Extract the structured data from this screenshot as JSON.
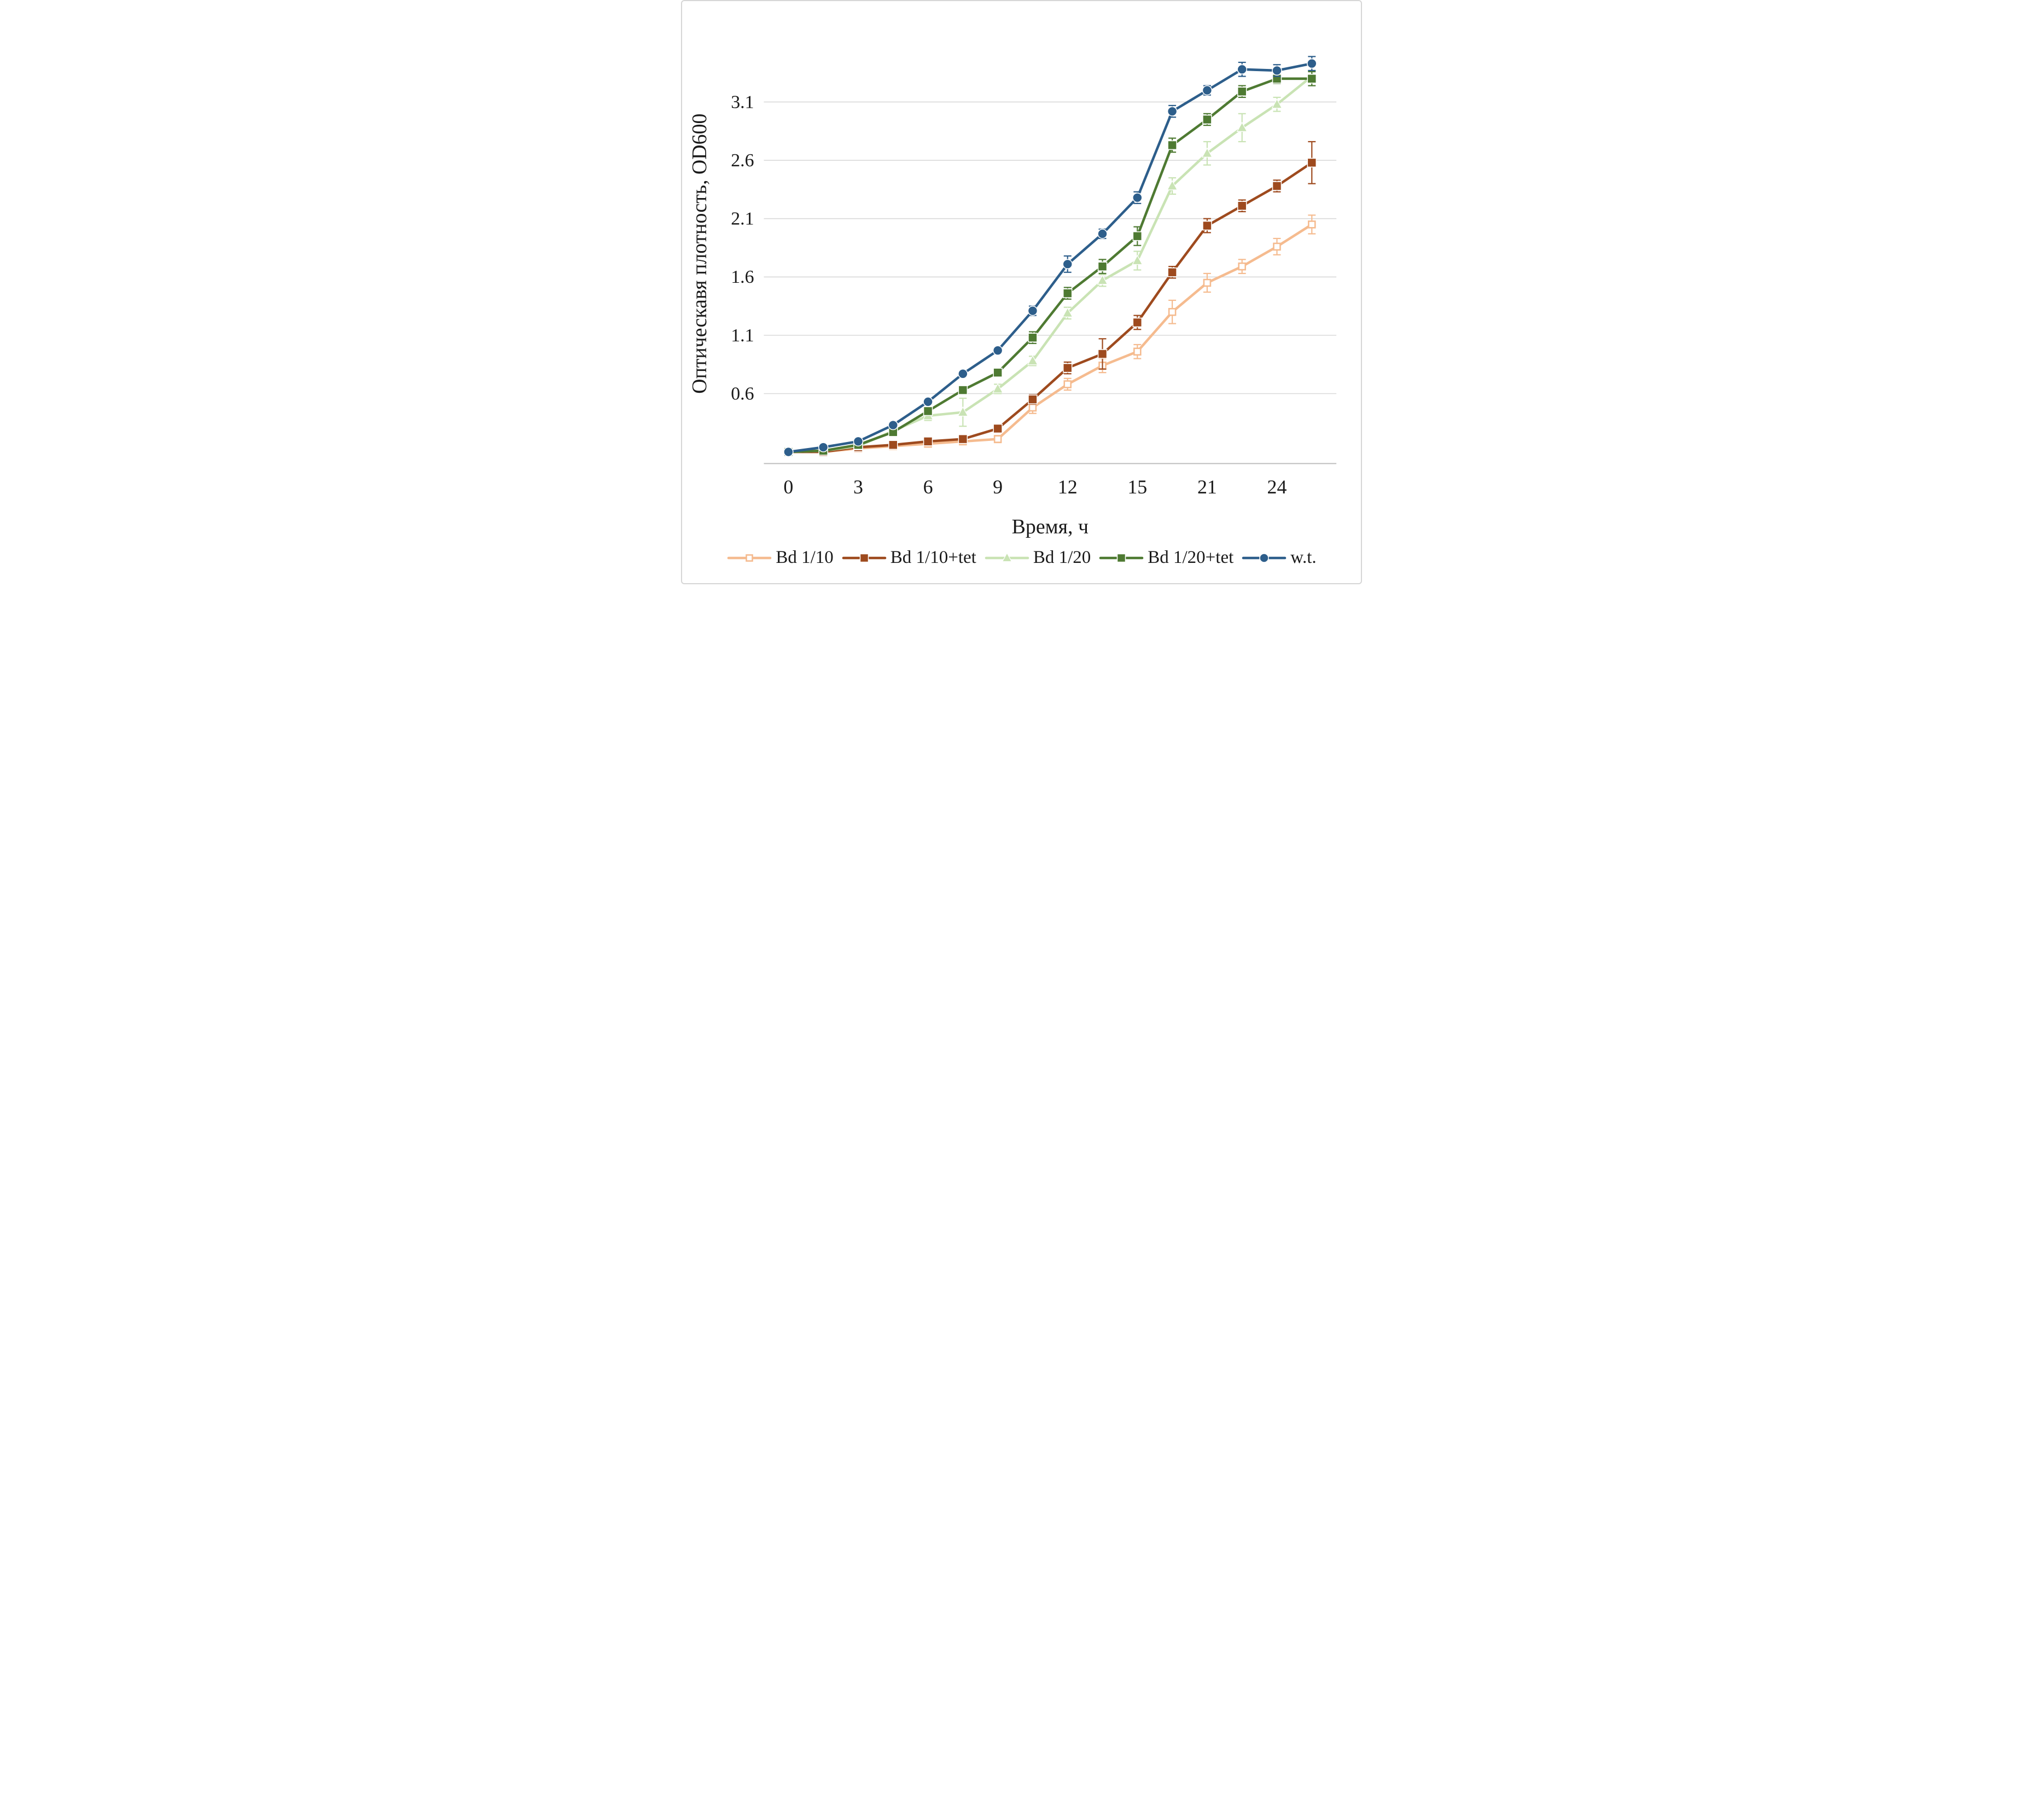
{
  "figure": {
    "background": "#ffffff",
    "border_color": "#d6d6d6",
    "grid_color": "#d9d9d9",
    "axis_color": "#bfbfbf",
    "text_color": "#1a1a1a"
  },
  "chart_data": {
    "type": "line",
    "title": "",
    "xlabel": "Время, ч",
    "ylabel": "Оптическавя плотность, OD600",
    "x_tick_labels": [
      "0",
      "",
      "3",
      "",
      "6",
      "",
      "9",
      "",
      "12",
      "",
      "15",
      "",
      "21",
      "",
      "24",
      ""
    ],
    "y_ticks": [
      0.6,
      1.1,
      1.6,
      2.1,
      2.6,
      3.1
    ],
    "ylim": [
      0,
      3.6
    ],
    "grid": "horizontal",
    "legend_position": "bottom",
    "series": [
      {
        "name": "Bd 1/10",
        "color": "#F5BB8F",
        "marker": "square-open",
        "values": [
          0.1,
          0.1,
          0.13,
          0.15,
          0.17,
          0.19,
          0.21,
          0.48,
          0.68,
          0.84,
          0.96,
          1.3,
          1.55,
          1.69,
          1.86,
          2.05
        ],
        "errors": [
          0,
          0,
          0,
          0,
          0,
          0,
          0.03,
          0.05,
          0.05,
          0.06,
          0.06,
          0.1,
          0.08,
          0.06,
          0.07,
          0.08
        ]
      },
      {
        "name": "Bd 1/10+tet",
        "color": "#9E4A1E",
        "marker": "square",
        "values": [
          0.1,
          0.1,
          0.14,
          0.16,
          0.19,
          0.21,
          0.3,
          0.55,
          0.82,
          0.94,
          1.21,
          1.64,
          2.04,
          2.21,
          2.38,
          2.58
        ],
        "errors": [
          0,
          0,
          0,
          0,
          0,
          0,
          0,
          0.04,
          0.05,
          0.13,
          0.06,
          0.05,
          0.06,
          0.05,
          0.05,
          0.18
        ]
      },
      {
        "name": "Bd 1/20",
        "color": "#C9E3B4",
        "marker": "triangle",
        "values": [
          0.1,
          0.11,
          0.15,
          0.28,
          0.41,
          0.44,
          0.64,
          0.88,
          1.29,
          1.57,
          1.74,
          2.38,
          2.66,
          2.88,
          3.08,
          3.32
        ],
        "errors": [
          0,
          0,
          0,
          0,
          0.04,
          0.12,
          0.04,
          0.04,
          0.05,
          0.05,
          0.08,
          0.07,
          0.1,
          0.12,
          0.06,
          0.05
        ]
      },
      {
        "name": "Bd 1/20+tet",
        "color": "#4E7A32",
        "marker": "square",
        "values": [
          0.1,
          0.11,
          0.16,
          0.27,
          0.45,
          0.63,
          0.78,
          1.08,
          1.46,
          1.69,
          1.95,
          2.73,
          2.95,
          3.19,
          3.3,
          3.3
        ],
        "errors": [
          0,
          0,
          0,
          0,
          0,
          0,
          0,
          0.05,
          0.05,
          0.06,
          0.08,
          0.06,
          0.05,
          0.05,
          0.04,
          0.06
        ]
      },
      {
        "name": "w.t.",
        "color": "#2D5E8B",
        "marker": "circle",
        "values": [
          0.1,
          0.14,
          0.19,
          0.33,
          0.53,
          0.77,
          0.97,
          1.31,
          1.71,
          1.97,
          2.28,
          3.02,
          3.2,
          3.38,
          3.37,
          3.43
        ],
        "errors": [
          0,
          0,
          0,
          0,
          0,
          0,
          0,
          0.04,
          0.07,
          0.04,
          0.05,
          0.05,
          0.04,
          0.06,
          0.05,
          0.06
        ]
      }
    ]
  }
}
